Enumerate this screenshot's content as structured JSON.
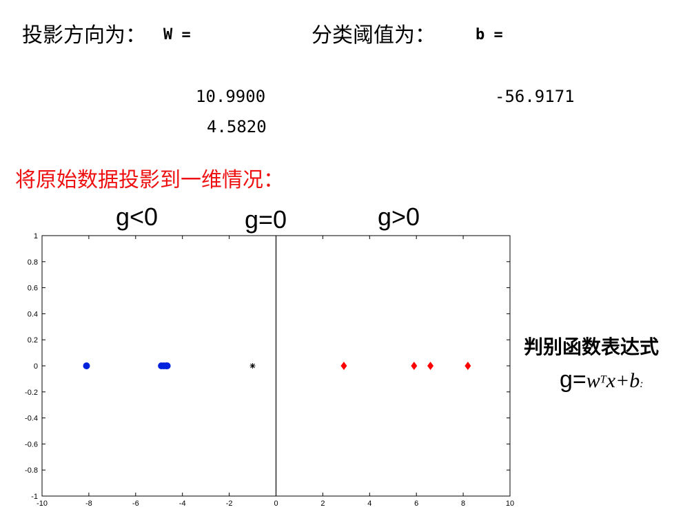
{
  "header": {
    "projection_label": "投影方向为：",
    "w_label": "W =",
    "threshold_label": "分类阈值为：",
    "b_label": "b =",
    "w_values": [
      "10.9900",
      "4.5820"
    ],
    "b_value": "-56.9171"
  },
  "section_title": "将原始数据投影到一维情况：",
  "region_labels": {
    "left": "g<0",
    "center": "g=0",
    "right": "g>0"
  },
  "formula": {
    "title": "判别函数表达式",
    "lhs": "g=",
    "w": "w",
    "sup": "T",
    "rest": "x+b",
    "tail": ":"
  },
  "colors": {
    "class1": "#0022dd",
    "class2": "#ff0000",
    "boundary": "#000000",
    "title_red": "#ee1111"
  },
  "chart_data": {
    "type": "scatter",
    "xlim": [
      -10,
      10
    ],
    "ylim": [
      -1,
      1
    ],
    "xticks": [
      -10,
      -8,
      -6,
      -4,
      -2,
      0,
      2,
      4,
      6,
      8,
      10
    ],
    "yticks": [
      1,
      0.8,
      0.6,
      0.4,
      0.2,
      0,
      -0.2,
      -0.4,
      -0.6,
      -0.8,
      -1
    ],
    "xtick_labels": [
      "-10",
      "-8",
      "-6",
      "-4",
      "-2",
      "0",
      "2",
      "4",
      "6",
      "8",
      "10"
    ],
    "ytick_labels": [
      "1",
      "0.8",
      "0.6",
      "0.4",
      "0.2",
      "0",
      "-0.2",
      "-0.4",
      "-0.6",
      "-0.8",
      "-1"
    ],
    "vline_x": 0,
    "grid": false,
    "series": [
      {
        "marker": "circle",
        "color": "#0022dd",
        "x": [
          -8.1,
          -4.9,
          -4.8,
          -4.7,
          -4.65
        ],
        "y": [
          0,
          0,
          0,
          0,
          0
        ]
      },
      {
        "marker": "star",
        "color": "#000000",
        "x": [
          -1.0
        ],
        "y": [
          0
        ]
      },
      {
        "marker": "diamond",
        "color": "#ff0000",
        "x": [
          2.9,
          5.9,
          6.6,
          8.2
        ],
        "y": [
          0,
          0,
          0,
          0
        ]
      }
    ]
  }
}
